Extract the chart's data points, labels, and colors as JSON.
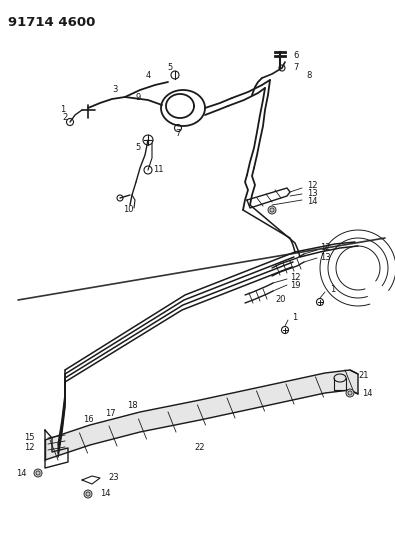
{
  "title": "91714 4600",
  "bg_color": "#ffffff",
  "line_color": "#1a1a1a",
  "label_color": "#1a1a1a",
  "label_fontsize": 6.0,
  "title_fontsize": 9.5,
  "fig_width": 3.95,
  "fig_height": 5.33,
  "dpi": 100
}
